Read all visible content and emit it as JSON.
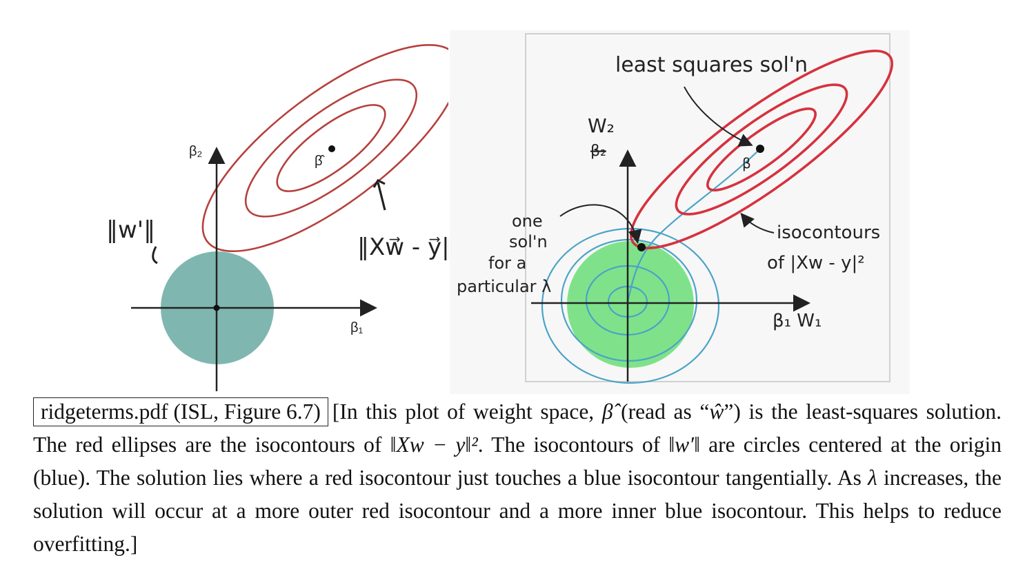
{
  "left_figure": {
    "axis_y_label": "β₂",
    "axis_x_label": "β₁",
    "beta_hat_label": "β̂",
    "hand_norm_w": "‖w'‖",
    "hand_residual": "‖Xw⃗ - y⃗‖",
    "colors": {
      "ellipse": "#b5403c",
      "disc": "#7fb7b0"
    }
  },
  "right_figure": {
    "least_squares_label": "least squares sol'n",
    "w2_label": "W₂",
    "beta2_crossed": "β₂",
    "beta_label": "β",
    "one_soln_lines": [
      "one",
      "sol'n",
      "for a",
      "particular λ"
    ],
    "isocontours_lines": [
      "isocontours",
      "of |Xw - y|²"
    ],
    "axis_x_label": "β₁ W₁",
    "colors": {
      "ellipse": "#d6323e",
      "circles": "#4aa3c7",
      "disc": "#7fe28a"
    }
  },
  "caption": {
    "boxed": "ridgeterms.pdf (ISL, Figure 6.7)",
    "p1": "[In this plot of weight space, ",
    "beta_hat": "β̂",
    "p2": " (read as “",
    "w_hat": "ŵ",
    "p3": "”) is the least-squares solution. The red ellipses are the isocontours of ",
    "norm1": "‖Xw − y‖²",
    "p4": ". The isocontours of ",
    "norm2": "‖w′‖",
    "p5": " are circles centered at the origin (blue). The solution lies where a red isocontour just touches a blue isocontour tangentially. As ",
    "lambda": "λ",
    "p6": " increases, the solution will occur at a more outer red isocontour and a more inner blue isocontour. This helps to reduce overfitting.]"
  }
}
